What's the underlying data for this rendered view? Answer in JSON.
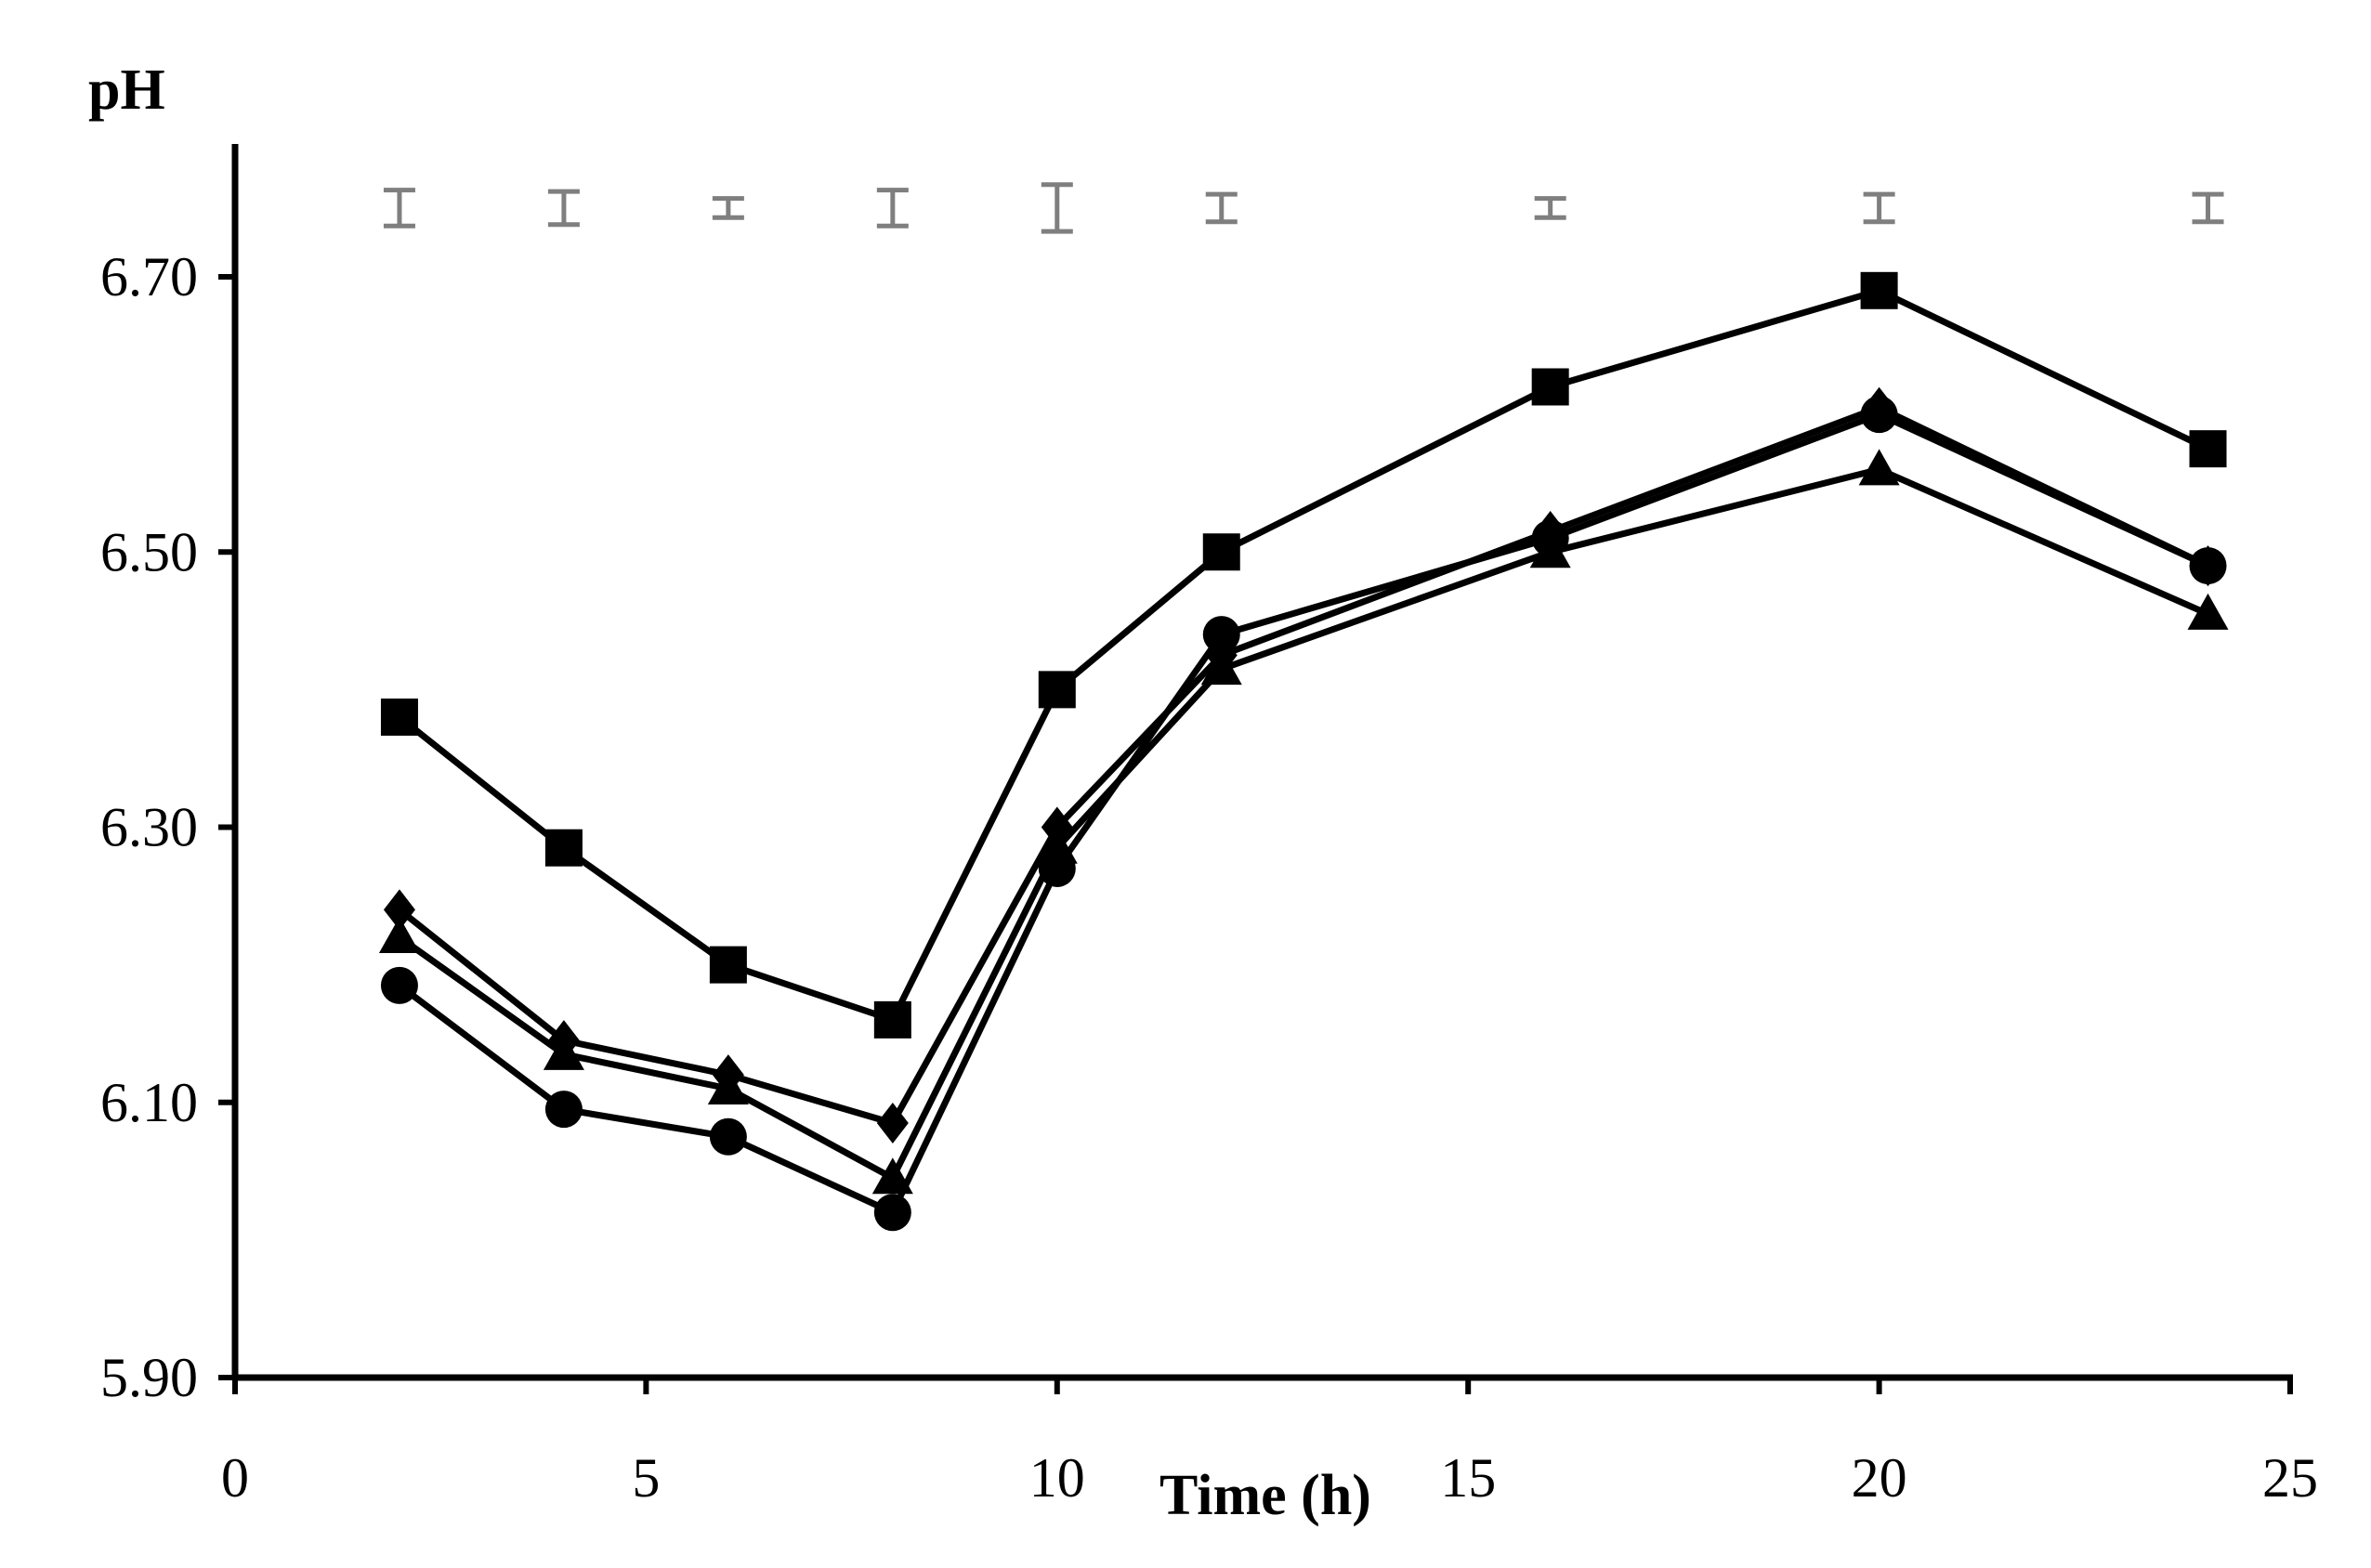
{
  "chart_data": {
    "type": "line",
    "title": "",
    "xlabel": "Time (h)",
    "ylabel": "pH",
    "xlim": [
      0,
      25
    ],
    "ylim": [
      5.9,
      6.8
    ],
    "x_ticks": [
      0,
      5,
      10,
      15,
      20,
      25
    ],
    "x_tick_labels": [
      "0",
      "5",
      "10",
      "15",
      "20",
      "25"
    ],
    "y_ticks": [
      5.9,
      6.1,
      6.3,
      6.5,
      6.7
    ],
    "y_tick_labels": [
      "5.90",
      "6.10",
      "6.30",
      "6.50",
      "6.70"
    ],
    "grid": false,
    "legend": "none",
    "x": [
      2,
      4,
      6,
      8,
      10,
      12,
      16,
      20,
      24
    ],
    "series": [
      {
        "name": "square",
        "marker": "square",
        "values": [
          6.38,
          6.285,
          6.2,
          6.16,
          6.4,
          6.5,
          6.62,
          6.69,
          6.575
        ]
      },
      {
        "name": "diamond",
        "marker": "diamond",
        "values": [
          6.24,
          6.145,
          6.12,
          6.085,
          6.3,
          6.425,
          6.515,
          6.605,
          6.49
        ]
      },
      {
        "name": "triangle",
        "marker": "triangle",
        "values": [
          6.22,
          6.135,
          6.11,
          6.045,
          6.285,
          6.415,
          6.5,
          6.56,
          6.455
        ]
      },
      {
        "name": "circle",
        "marker": "circle",
        "values": [
          6.185,
          6.095,
          6.075,
          6.02,
          6.27,
          6.44,
          6.51,
          6.6,
          6.49
        ]
      }
    ],
    "error_bars": {
      "description": "standard error of the mean per time point (shown above the lines)",
      "x": [
        2,
        4,
        6,
        8,
        10,
        12,
        16,
        20,
        24
      ],
      "center": 6.75,
      "half_width": [
        0.013,
        0.012,
        0.007,
        0.013,
        0.017,
        0.01,
        0.007,
        0.01,
        0.01
      ]
    },
    "colors": {
      "series": "#000000",
      "error_bars": "#7f7f7f"
    }
  }
}
